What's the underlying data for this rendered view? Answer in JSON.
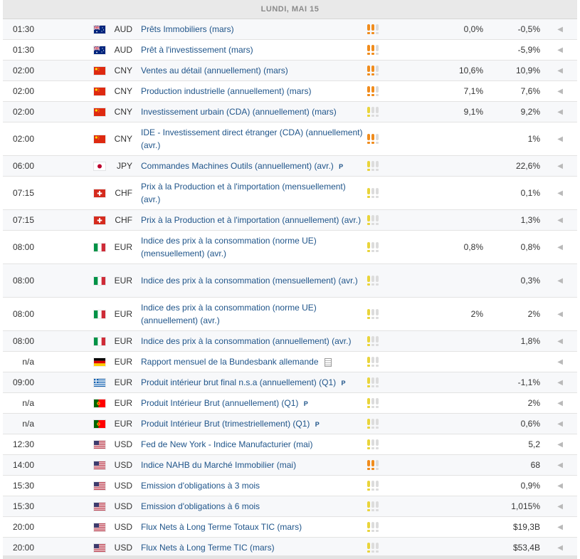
{
  "header": {
    "day": "LUNDI, MAI 15"
  },
  "flags": {
    "AU": {
      "name": "australia-flag-icon"
    },
    "CN": {
      "name": "china-flag-icon"
    },
    "JP": {
      "name": "japan-flag-icon"
    },
    "CH": {
      "name": "switzerland-flag-icon"
    },
    "IT": {
      "name": "italy-flag-icon"
    },
    "DE": {
      "name": "germany-flag-icon"
    },
    "GR": {
      "name": "greece-flag-icon"
    },
    "PT": {
      "name": "portugal-flag-icon"
    },
    "US": {
      "name": "usa-flag-icon"
    }
  },
  "importance_colors": {
    "high": "#f08c1d",
    "low": "#e9d43a",
    "off": "#dcdcdc"
  },
  "rows": [
    {
      "time": "01:30",
      "flag": "AU",
      "currency": "AUD",
      "event": "Prêts Immobiliers (mars)",
      "importance": 2,
      "actual": "",
      "forecast": "0,0%",
      "previous": "-0,5%",
      "tall": false,
      "p": false,
      "doc": false
    },
    {
      "time": "01:30",
      "flag": "AU",
      "currency": "AUD",
      "event": "Prêt à l'investissement (mars)",
      "importance": 2,
      "actual": "",
      "forecast": "",
      "previous": "-5,9%",
      "tall": false,
      "p": false,
      "doc": false
    },
    {
      "time": "02:00",
      "flag": "CN",
      "currency": "CNY",
      "event": "Ventes au détail (annuellement) (mars)",
      "importance": 2,
      "actual": "",
      "forecast": "10,6%",
      "previous": "10,9%",
      "tall": false,
      "p": false,
      "doc": false
    },
    {
      "time": "02:00",
      "flag": "CN",
      "currency": "CNY",
      "event": "Production industrielle (annuellement) (mars)",
      "importance": 2,
      "actual": "",
      "forecast": "7,1%",
      "previous": "7,6%",
      "tall": false,
      "p": false,
      "doc": false
    },
    {
      "time": "02:00",
      "flag": "CN",
      "currency": "CNY",
      "event": "Investissement urbain (CDA) (annuellement) (mars)",
      "importance": 1,
      "actual": "",
      "forecast": "9,1%",
      "previous": "9,2%",
      "tall": false,
      "p": false,
      "doc": false
    },
    {
      "time": "02:00",
      "flag": "CN",
      "currency": "CNY",
      "event": "IDE - Investissement direct étranger (CDA) (annuellement) (avr.)",
      "importance": 2,
      "actual": "",
      "forecast": "",
      "previous": "1%",
      "tall": true,
      "p": false,
      "doc": false
    },
    {
      "time": "06:00",
      "flag": "JP",
      "currency": "JPY",
      "event": "Commandes Machines Outils (annuellement) (avr.)",
      "importance": 1,
      "actual": "",
      "forecast": "",
      "previous": "22,6%",
      "tall": false,
      "p": true,
      "doc": false
    },
    {
      "time": "07:15",
      "flag": "CH",
      "currency": "CHF",
      "event": "Prix à la Production et à l'importation (mensuellement) (avr.)",
      "importance": 1,
      "actual": "",
      "forecast": "",
      "previous": "0,1%",
      "tall": true,
      "p": false,
      "doc": false
    },
    {
      "time": "07:15",
      "flag": "CH",
      "currency": "CHF",
      "event": "Prix à la Production et à l'importation (annuellement) (avr.)",
      "importance": 1,
      "actual": "",
      "forecast": "",
      "previous": "1,3%",
      "tall": false,
      "p": false,
      "doc": false
    },
    {
      "time": "08:00",
      "flag": "IT",
      "currency": "EUR",
      "event": "Indice des prix à la consommation (norme UE) (mensuellement) (avr.)",
      "importance": 1,
      "actual": "",
      "forecast": "0,8%",
      "previous": "0,8%",
      "tall": true,
      "p": false,
      "doc": false
    },
    {
      "time": "08:00",
      "flag": "IT",
      "currency": "EUR",
      "event": "Indice des prix à la consommation (mensuellement) (avr.)",
      "importance": 1,
      "actual": "",
      "forecast": "",
      "previous": "0,3%",
      "tall": true,
      "p": false,
      "doc": false
    },
    {
      "time": "08:00",
      "flag": "IT",
      "currency": "EUR",
      "event": "Indice des prix à la consommation (norme UE) (annuellement) (avr.)",
      "importance": 1,
      "actual": "",
      "forecast": "2%",
      "previous": "2%",
      "tall": true,
      "p": false,
      "doc": false
    },
    {
      "time": "08:00",
      "flag": "IT",
      "currency": "EUR",
      "event": "Indice des prix à la consommation (annuellement) (avr.)",
      "importance": 1,
      "actual": "",
      "forecast": "",
      "previous": "1,8%",
      "tall": false,
      "p": false,
      "doc": false
    },
    {
      "time": "n/a",
      "flag": "DE",
      "currency": "EUR",
      "event": "Rapport mensuel de la Bundesbank allemande",
      "importance": 1,
      "actual": "",
      "forecast": "",
      "previous": "",
      "tall": false,
      "p": false,
      "doc": true
    },
    {
      "time": "09:00",
      "flag": "GR",
      "currency": "EUR",
      "event": "Produit intérieur brut final n.s.a (annuellement) (Q1)",
      "importance": 1,
      "actual": "",
      "forecast": "",
      "previous": "-1,1%",
      "tall": false,
      "p": true,
      "doc": false
    },
    {
      "time": "n/a",
      "flag": "PT",
      "currency": "EUR",
      "event": "Produit Intérieur Brut (annuellement) (Q1)",
      "importance": 1,
      "actual": "",
      "forecast": "",
      "previous": "2%",
      "tall": false,
      "p": true,
      "doc": false
    },
    {
      "time": "n/a",
      "flag": "PT",
      "currency": "EUR",
      "event": "Produit Intérieur Brut (trimestriellement) (Q1)",
      "importance": 1,
      "actual": "",
      "forecast": "",
      "previous": "0,6%",
      "tall": false,
      "p": true,
      "doc": false
    },
    {
      "time": "12:30",
      "flag": "US",
      "currency": "USD",
      "event": "Fed de New York - Indice Manufacturier (mai)",
      "importance": 1,
      "actual": "",
      "forecast": "",
      "previous": "5,2",
      "tall": false,
      "p": false,
      "doc": false
    },
    {
      "time": "14:00",
      "flag": "US",
      "currency": "USD",
      "event": "Indice NAHB du Marché Immobilier (mai)",
      "importance": 2,
      "actual": "",
      "forecast": "",
      "previous": "68",
      "tall": false,
      "p": false,
      "doc": false
    },
    {
      "time": "15:30",
      "flag": "US",
      "currency": "USD",
      "event": "Emission d'obligations à 3 mois",
      "importance": 1,
      "actual": "",
      "forecast": "",
      "previous": "0,9%",
      "tall": false,
      "p": false,
      "doc": false
    },
    {
      "time": "15:30",
      "flag": "US",
      "currency": "USD",
      "event": "Emission d'obligations à 6 mois",
      "importance": 1,
      "actual": "",
      "forecast": "",
      "previous": "1,015%",
      "tall": false,
      "p": false,
      "doc": false
    },
    {
      "time": "20:00",
      "flag": "US",
      "currency": "USD",
      "event": "Flux Nets à Long Terme Totaux TIC (mars)",
      "importance": 1,
      "actual": "",
      "forecast": "",
      "previous": "$19,3B",
      "tall": false,
      "p": false,
      "doc": false
    },
    {
      "time": "20:00",
      "flag": "US",
      "currency": "USD",
      "event": "Flux Nets à Long Terme TIC (mars)",
      "importance": 1,
      "actual": "",
      "forecast": "",
      "previous": "$53,4B",
      "tall": false,
      "p": false,
      "doc": false
    }
  ],
  "labels": {
    "p_marker": "P",
    "expand_arrow": "◀"
  }
}
